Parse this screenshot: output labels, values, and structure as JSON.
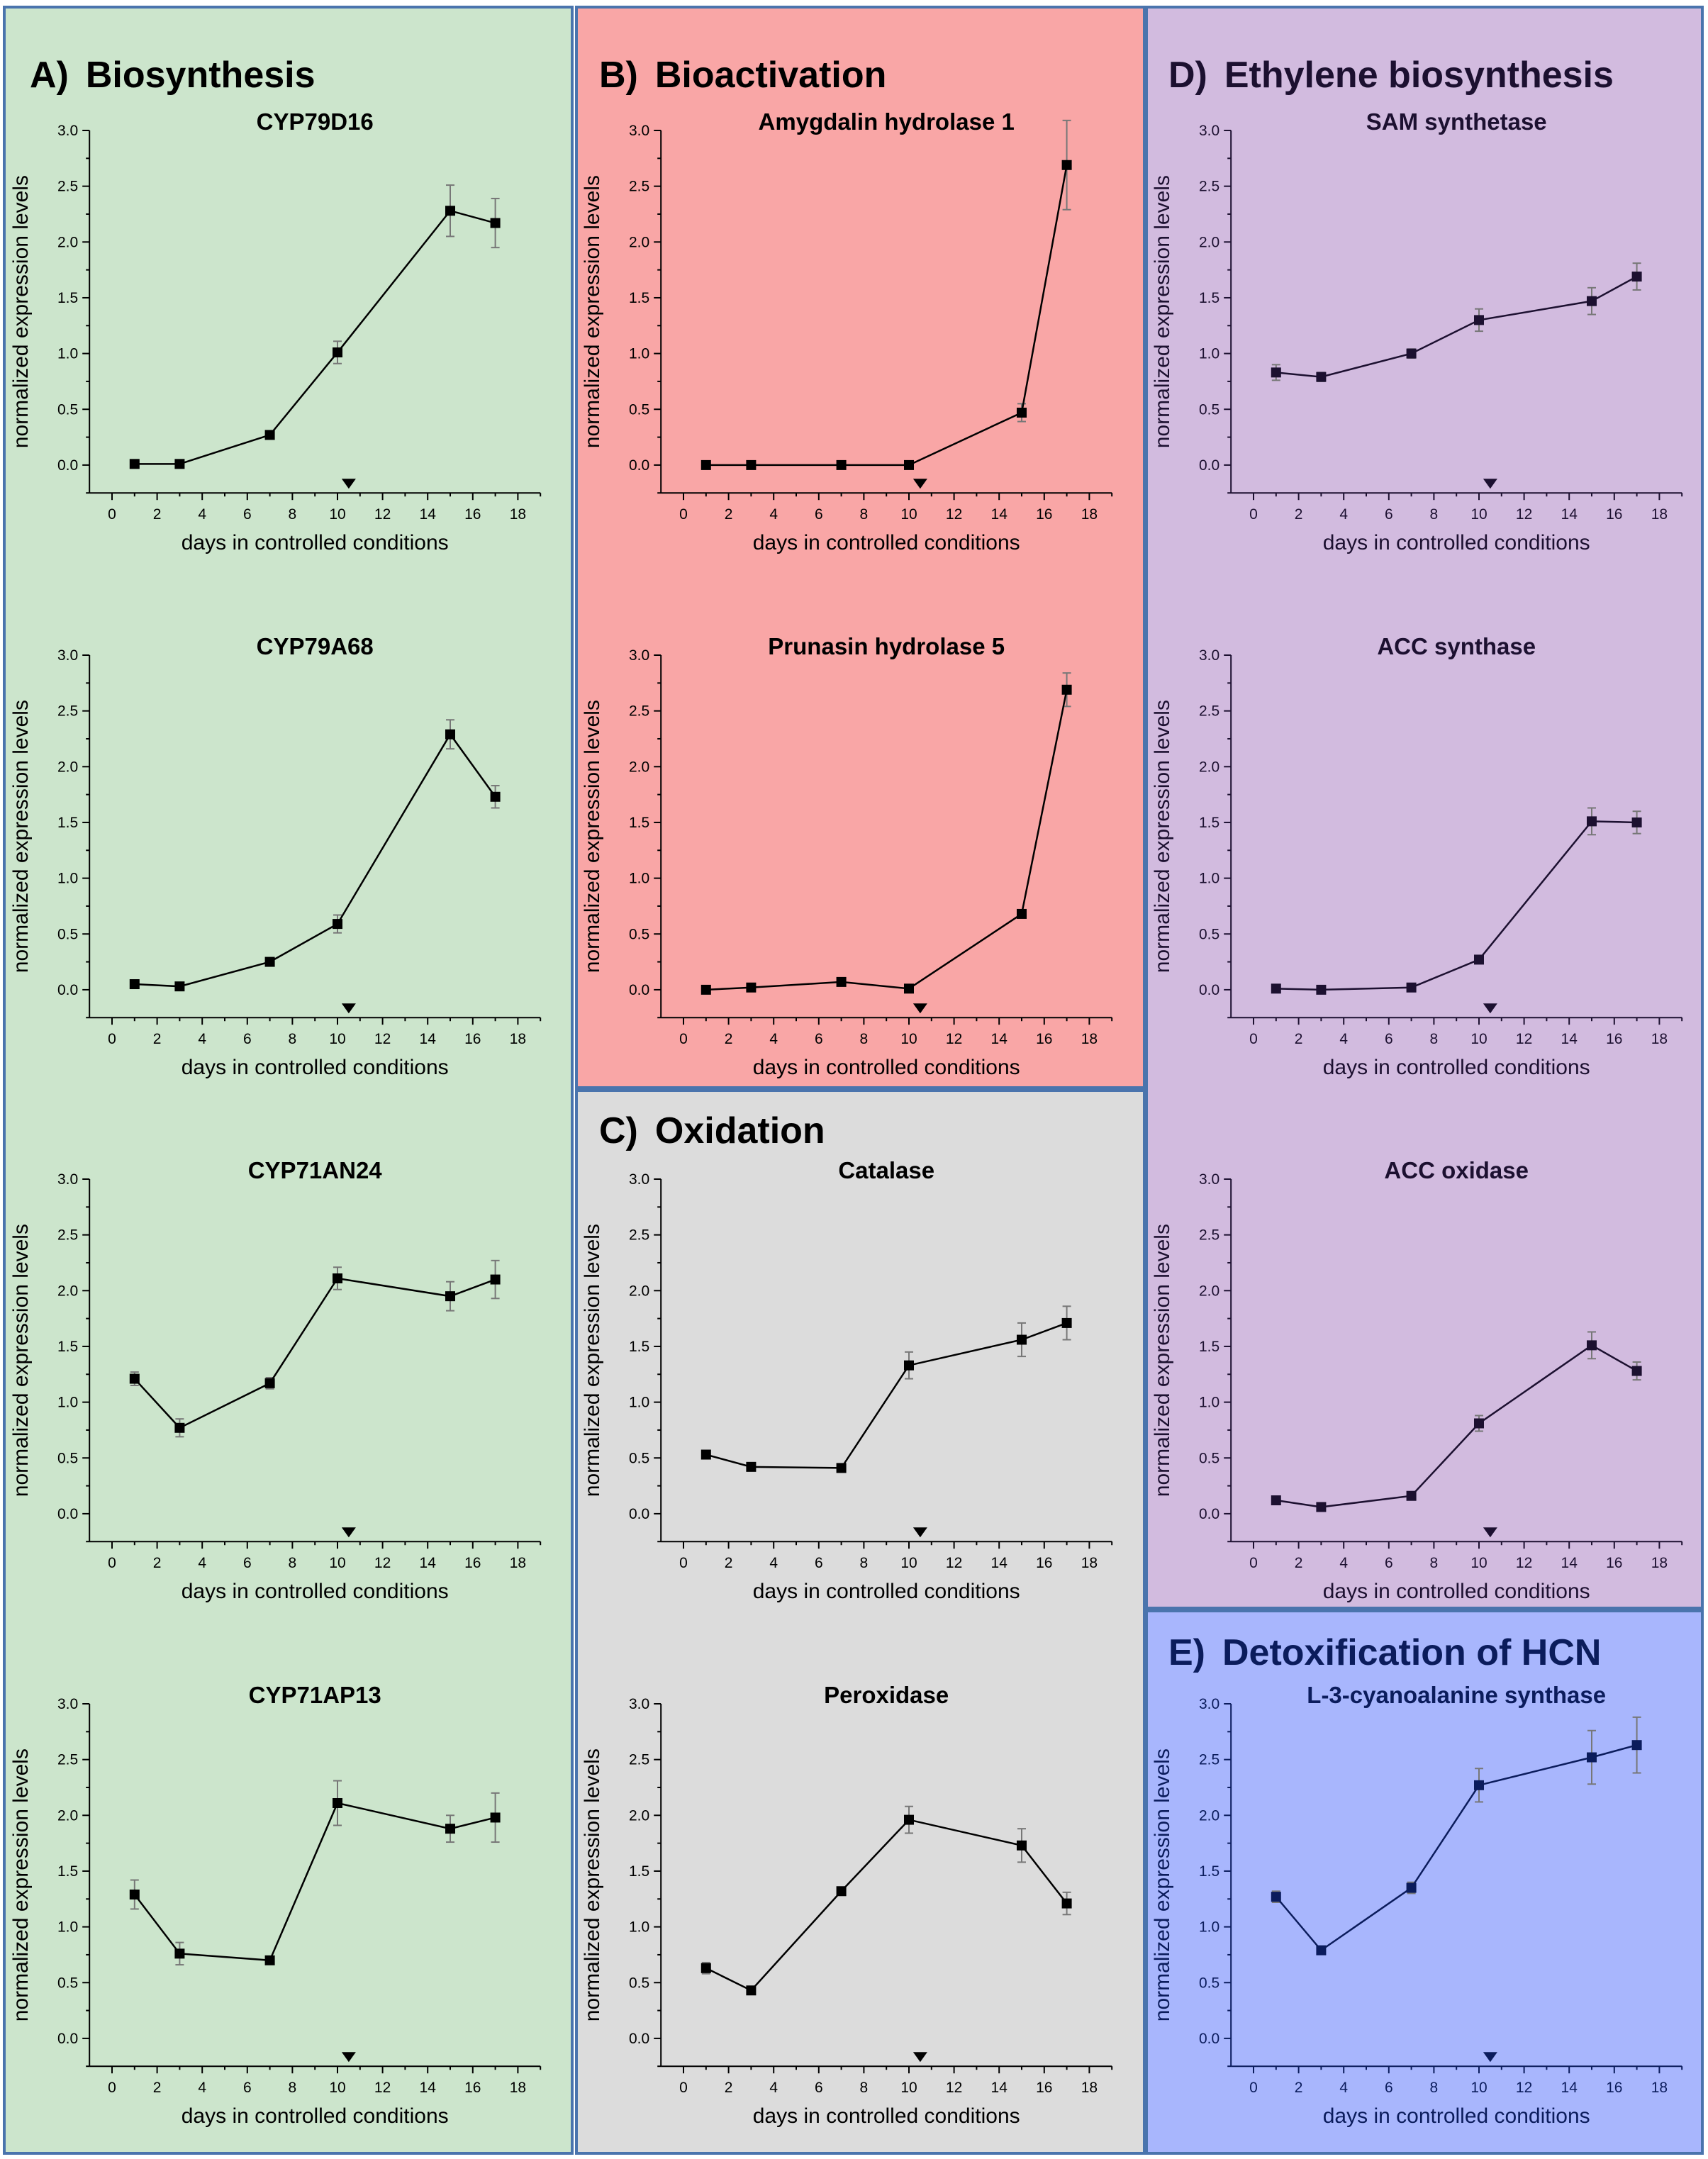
{
  "figure": {
    "sections": [
      {
        "id": "A",
        "letter": "A)",
        "title": "Biosynthesis",
        "bg": "#cce5cc",
        "text": "#000000"
      },
      {
        "id": "B",
        "letter": "B)",
        "title": "Bioactivation",
        "bg": "#f9a6a6",
        "text": "#000000"
      },
      {
        "id": "C",
        "letter": "C)",
        "title": "Oxidation",
        "bg": "#dcdcdc",
        "text": "#000000"
      },
      {
        "id": "D",
        "letter": "D)",
        "title": "Ethylene biosynthesis",
        "bg": "#d2bbdf",
        "text": "#1c1030"
      },
      {
        "id": "E",
        "letter": "E)",
        "title": "Detoxification of HCN",
        "bg": "#a8b6fd",
        "text": "#0b1c5c"
      }
    ],
    "frame_color": "#4a74ad"
  },
  "chart_data": [
    {
      "id": "cyp79d16",
      "section": "A",
      "type": "line",
      "title": "CYP79D16",
      "xlabel": "days in controlled conditions",
      "ylabel": "normalized expression levels",
      "xlim": [
        -1,
        19
      ],
      "ylim": [
        -0.25,
        3.0
      ],
      "xticks": [
        0,
        2,
        4,
        6,
        8,
        10,
        12,
        14,
        16,
        18
      ],
      "yticks": [
        0.0,
        0.5,
        1.0,
        1.5,
        2.0,
        2.5,
        3.0
      ],
      "marker_x": 10.5,
      "x": [
        1,
        3,
        7,
        10,
        15,
        17
      ],
      "y": [
        0.01,
        0.01,
        0.27,
        1.01,
        2.28,
        2.17
      ],
      "err": [
        0.0,
        0.0,
        0.0,
        0.1,
        0.23,
        0.22
      ]
    },
    {
      "id": "cyp79a68",
      "section": "A",
      "type": "line",
      "title": "CYP79A68",
      "xlabel": "days in controlled conditions",
      "ylabel": "normalized expression levels",
      "xlim": [
        -1,
        19
      ],
      "ylim": [
        -0.25,
        3.0
      ],
      "xticks": [
        0,
        2,
        4,
        6,
        8,
        10,
        12,
        14,
        16,
        18
      ],
      "yticks": [
        0.0,
        0.5,
        1.0,
        1.5,
        2.0,
        2.5,
        3.0
      ],
      "marker_x": 10.5,
      "x": [
        1,
        3,
        7,
        10,
        15,
        17
      ],
      "y": [
        0.05,
        0.03,
        0.25,
        0.59,
        2.29,
        1.73
      ],
      "err": [
        0.0,
        0.0,
        0.0,
        0.08,
        0.13,
        0.1
      ]
    },
    {
      "id": "cyp71an24",
      "section": "A",
      "type": "line",
      "title": "CYP71AN24",
      "xlabel": "days in controlled conditions",
      "ylabel": "normalized expression levels",
      "xlim": [
        -1,
        19
      ],
      "ylim": [
        -0.25,
        3.0
      ],
      "xticks": [
        0,
        2,
        4,
        6,
        8,
        10,
        12,
        14,
        16,
        18
      ],
      "yticks": [
        0.0,
        0.5,
        1.0,
        1.5,
        2.0,
        2.5,
        3.0
      ],
      "marker_x": 10.5,
      "x": [
        1,
        3,
        7,
        10,
        15,
        17
      ],
      "y": [
        1.21,
        0.77,
        1.17,
        2.11,
        1.95,
        2.1
      ],
      "err": [
        0.06,
        0.08,
        0.05,
        0.1,
        0.13,
        0.17
      ]
    },
    {
      "id": "cyp71ap13",
      "section": "A",
      "type": "line",
      "title": "CYP71AP13",
      "xlabel": "days in controlled conditions",
      "ylabel": "normalized expression levels",
      "xlim": [
        -1,
        19
      ],
      "ylim": [
        -0.25,
        3.0
      ],
      "xticks": [
        0,
        2,
        4,
        6,
        8,
        10,
        12,
        14,
        16,
        18
      ],
      "yticks": [
        0.0,
        0.5,
        1.0,
        1.5,
        2.0,
        2.5,
        3.0
      ],
      "marker_x": 10.5,
      "x": [
        1,
        3,
        7,
        10,
        15,
        17
      ],
      "y": [
        1.29,
        0.76,
        0.7,
        2.11,
        1.88,
        1.98
      ],
      "err": [
        0.13,
        0.1,
        0.0,
        0.2,
        0.12,
        0.22
      ]
    },
    {
      "id": "amygdalin",
      "section": "B",
      "type": "line",
      "title": "Amygdalin hydrolase 1",
      "xlabel": "days in controlled conditions",
      "ylabel": "normalized expression levels",
      "xlim": [
        -1,
        19
      ],
      "ylim": [
        -0.25,
        3.0
      ],
      "xticks": [
        0,
        2,
        4,
        6,
        8,
        10,
        12,
        14,
        16,
        18
      ],
      "yticks": [
        0.0,
        0.5,
        1.0,
        1.5,
        2.0,
        2.5,
        3.0
      ],
      "marker_x": 10.5,
      "x": [
        1,
        3,
        7,
        10,
        15,
        17
      ],
      "y": [
        0.0,
        0.0,
        0.0,
        0.0,
        0.47,
        2.69
      ],
      "err": [
        0.0,
        0.0,
        0.0,
        0.0,
        0.08,
        0.4
      ]
    },
    {
      "id": "prunasin",
      "section": "B",
      "type": "line",
      "title": "Prunasin hydrolase 5",
      "xlabel": "days in controlled conditions",
      "ylabel": "normalized expression levels",
      "xlim": [
        -1,
        19
      ],
      "ylim": [
        -0.25,
        3.0
      ],
      "xticks": [
        0,
        2,
        4,
        6,
        8,
        10,
        12,
        14,
        16,
        18
      ],
      "yticks": [
        0.0,
        0.5,
        1.0,
        1.5,
        2.0,
        2.5,
        3.0
      ],
      "marker_x": 10.5,
      "x": [
        1,
        3,
        7,
        10,
        15,
        17
      ],
      "y": [
        0.0,
        0.02,
        0.07,
        0.01,
        0.68,
        2.69
      ],
      "err": [
        0.0,
        0.0,
        0.0,
        0.0,
        0.0,
        0.15
      ]
    },
    {
      "id": "catalase",
      "section": "C",
      "type": "line",
      "title": "Catalase",
      "xlabel": "days in controlled conditions",
      "ylabel": "normalized expression levels",
      "xlim": [
        -1,
        19
      ],
      "ylim": [
        -0.25,
        3.0
      ],
      "xticks": [
        0,
        2,
        4,
        6,
        8,
        10,
        12,
        14,
        16,
        18
      ],
      "yticks": [
        0.0,
        0.5,
        1.0,
        1.5,
        2.0,
        2.5,
        3.0
      ],
      "marker_x": 10.5,
      "x": [
        1,
        3,
        7,
        10,
        15,
        17
      ],
      "y": [
        0.53,
        0.42,
        0.41,
        1.33,
        1.56,
        1.71
      ],
      "err": [
        0.0,
        0.0,
        0.0,
        0.12,
        0.15,
        0.15
      ]
    },
    {
      "id": "peroxidase",
      "section": "C",
      "type": "line",
      "title": "Peroxidase",
      "xlabel": "days in controlled conditions",
      "ylabel": "normalized expression levels",
      "xlim": [
        -1,
        19
      ],
      "ylim": [
        -0.25,
        3.0
      ],
      "xticks": [
        0,
        2,
        4,
        6,
        8,
        10,
        12,
        14,
        16,
        18
      ],
      "yticks": [
        0.0,
        0.5,
        1.0,
        1.5,
        2.0,
        2.5,
        3.0
      ],
      "marker_x": 10.5,
      "x": [
        1,
        3,
        7,
        10,
        15,
        17
      ],
      "y": [
        0.63,
        0.43,
        1.32,
        1.96,
        1.73,
        1.21
      ],
      "err": [
        0.05,
        0.0,
        0.0,
        0.12,
        0.15,
        0.1
      ]
    },
    {
      "id": "sam",
      "section": "D",
      "type": "line",
      "title": "SAM synthetase",
      "xlabel": "days in controlled conditions",
      "ylabel": "normalized expression levels",
      "xlim": [
        -1,
        19
      ],
      "ylim": [
        -0.25,
        3.0
      ],
      "xticks": [
        0,
        2,
        4,
        6,
        8,
        10,
        12,
        14,
        16,
        18
      ],
      "yticks": [
        0.0,
        0.5,
        1.0,
        1.5,
        2.0,
        2.5,
        3.0
      ],
      "marker_x": 10.5,
      "x": [
        1,
        3,
        7,
        10,
        15,
        17
      ],
      "y": [
        0.83,
        0.79,
        1.0,
        1.3,
        1.47,
        1.69
      ],
      "err": [
        0.07,
        0.04,
        0.04,
        0.1,
        0.12,
        0.12
      ]
    },
    {
      "id": "acc-synthase",
      "section": "D",
      "type": "line",
      "title": "ACC synthase",
      "xlabel": "days in controlled conditions",
      "ylabel": "normalized expression levels",
      "xlim": [
        -1,
        19
      ],
      "ylim": [
        -0.25,
        3.0
      ],
      "xticks": [
        0,
        2,
        4,
        6,
        8,
        10,
        12,
        14,
        16,
        18
      ],
      "yticks": [
        0.0,
        0.5,
        1.0,
        1.5,
        2.0,
        2.5,
        3.0
      ],
      "marker_x": 10.5,
      "x": [
        1,
        3,
        7,
        10,
        15,
        17
      ],
      "y": [
        0.01,
        0.0,
        0.02,
        0.27,
        1.51,
        1.5
      ],
      "err": [
        0.0,
        0.0,
        0.0,
        0.0,
        0.12,
        0.1
      ]
    },
    {
      "id": "acc-oxidase",
      "section": "D",
      "type": "line",
      "title": "ACC oxidase",
      "xlabel": "days in controlled conditions",
      "ylabel": "normalized expression levels",
      "xlim": [
        -1,
        19
      ],
      "ylim": [
        -0.25,
        3.0
      ],
      "xticks": [
        0,
        2,
        4,
        6,
        8,
        10,
        12,
        14,
        16,
        18
      ],
      "yticks": [
        0.0,
        0.5,
        1.0,
        1.5,
        2.0,
        2.5,
        3.0
      ],
      "marker_x": 10.5,
      "x": [
        1,
        3,
        7,
        10,
        15,
        17
      ],
      "y": [
        0.12,
        0.06,
        0.16,
        0.81,
        1.51,
        1.28
      ],
      "err": [
        0.0,
        0.0,
        0.0,
        0.07,
        0.12,
        0.08
      ]
    },
    {
      "id": "cyanoalanine",
      "section": "E",
      "type": "line",
      "title": "L-3-cyanoalanine synthase",
      "xlabel": "days in controlled conditions",
      "ylabel": "normalized expression levels",
      "xlim": [
        -1,
        19
      ],
      "ylim": [
        -0.25,
        3.0
      ],
      "xticks": [
        0,
        2,
        4,
        6,
        8,
        10,
        12,
        14,
        16,
        18
      ],
      "yticks": [
        0.0,
        0.5,
        1.0,
        1.5,
        2.0,
        2.5,
        3.0
      ],
      "marker_x": 10.5,
      "x": [
        1,
        3,
        7,
        10,
        15,
        17
      ],
      "y": [
        1.27,
        0.79,
        1.35,
        2.27,
        2.52,
        2.63
      ],
      "err": [
        0.05,
        0.03,
        0.05,
        0.15,
        0.24,
        0.25
      ]
    }
  ]
}
